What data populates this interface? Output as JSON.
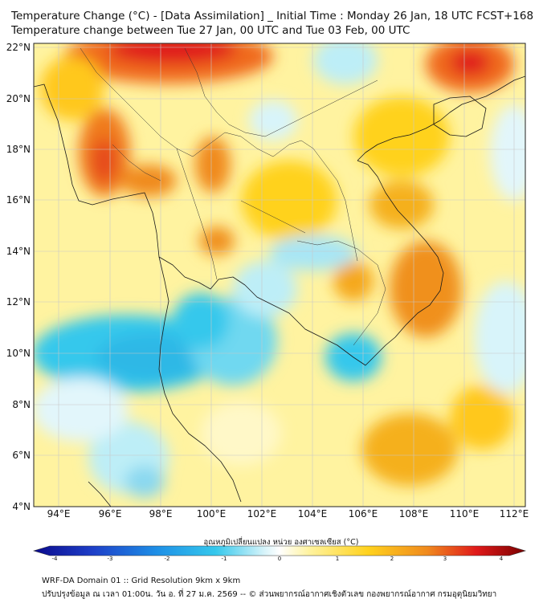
{
  "header": {
    "title_line1": "Temperature Change (°C) - [Data Assimilation] _ Initial Time : Monday 26 Jan, 18 UTC FCST+168",
    "title_line2": "Temperature change between Tue 27 Jan, 00 UTC and Tue 03 Feb, 00 UTC"
  },
  "map": {
    "lat_labels": [
      "22°N",
      "20°N",
      "18°N",
      "16°N",
      "14°N",
      "12°N",
      "10°N",
      "8°N",
      "6°N",
      "4°N"
    ],
    "lon_labels": [
      "94°E",
      "96°E",
      "98°E",
      "100°E",
      "102°E",
      "104°E",
      "106°E",
      "108°E",
      "110°E",
      "112°E"
    ],
    "lat_range": [
      4,
      22.1
    ],
    "lon_range": [
      93.2,
      112.4
    ]
  },
  "colorbar": {
    "title": "อุณหภูมิเปลี่ยนแปลง หน่วย องศาเซลเซียส (°C)",
    "ticks": [
      "-4",
      "-3",
      "-2",
      "-1",
      "0",
      "1",
      "2",
      "3",
      "4"
    ],
    "colors": {
      "deep_blue": "#0a0a8c",
      "blue": "#1e5bd6",
      "cyan": "#35c8ec",
      "light_cyan": "#bdeef7",
      "white": "#ffffff",
      "light_yellow": "#fff7a8",
      "yellow": "#ffd21e",
      "orange": "#f08a1e",
      "red": "#e01a1a",
      "dark_red": "#7a0000"
    }
  },
  "footer": {
    "line1": "WRF-DA Domain 01 :: Grid Resolution 9km x 9km",
    "line2": "ปรับปรุงข้อมูล ณ เวลา 01:00น. วัน อ. ที่ 27 ม.ค. 2569 -- © ส่วนพยากรณ์อากาศเชิงตัวเลข กองพยากรณ์อากาศ กรมอุตุนิยมวิทยา"
  }
}
